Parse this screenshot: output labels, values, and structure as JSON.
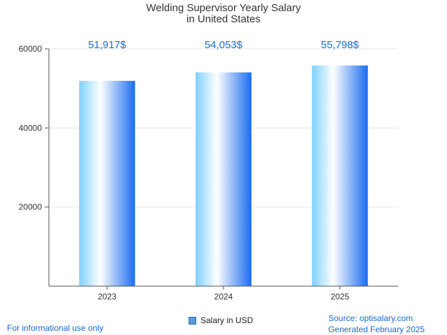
{
  "chart_data": {
    "type": "bar",
    "title_lines": [
      "Welding Supervisor Yearly Salary",
      "in United States"
    ],
    "categories": [
      "2023",
      "2024",
      "2025"
    ],
    "series": [
      {
        "name": "Salary in USD",
        "values": [
          51917,
          54053,
          55798
        ],
        "labels": [
          "51,917$",
          "54,053$",
          "55,798$"
        ]
      }
    ],
    "y_ticks": [
      "20000",
      "40000",
      "60000"
    ],
    "ylim": [
      0,
      60000
    ],
    "grid": true,
    "legend_position": "bottom-center",
    "colors": {
      "bar_left": "#7fd0ff",
      "bar_mid": "#ffffff",
      "bar_right": "#1a6cf0",
      "value_label": "#1a6ad3",
      "grid": "#e6e6e6",
      "axis": "#555555"
    }
  },
  "footer": {
    "left": "For informational use only",
    "source": "Source: optisalary.com",
    "generated": "Generated February 2025"
  }
}
